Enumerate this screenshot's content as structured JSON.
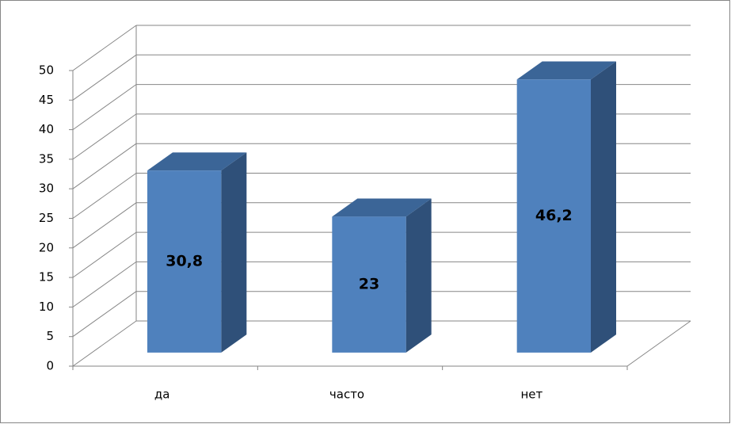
{
  "chart_data": {
    "type": "bar3d",
    "categories": [
      "да",
      "часто",
      "нет"
    ],
    "values": [
      30.8,
      23,
      46.2
    ],
    "value_labels": [
      "30,8",
      "23",
      "46,2"
    ],
    "color": "#4f81bd",
    "ylim": [
      0,
      50
    ],
    "yticks": [
      0,
      5,
      10,
      15,
      20,
      25,
      30,
      35,
      40,
      45,
      50
    ],
    "grid": true
  }
}
